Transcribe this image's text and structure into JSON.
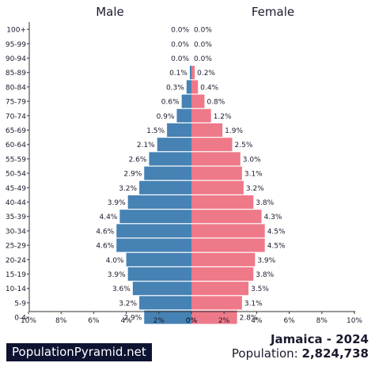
{
  "chart_data": {
    "type": "bar",
    "subtype": "population-pyramid",
    "left_label": "Male",
    "right_label": "Female",
    "categories": [
      "100+",
      "95-99",
      "90-94",
      "85-89",
      "80-84",
      "75-79",
      "70-74",
      "65-69",
      "60-64",
      "55-59",
      "50-54",
      "45-49",
      "40-44",
      "35-39",
      "30-34",
      "25-29",
      "20-24",
      "15-19",
      "10-14",
      "5-9",
      "0-4"
    ],
    "series": [
      {
        "name": "Male",
        "color": "#4682b4",
        "values": [
          0.0,
          0.0,
          0.0,
          0.1,
          0.3,
          0.6,
          0.9,
          1.5,
          2.1,
          2.6,
          2.9,
          3.2,
          3.9,
          4.4,
          4.6,
          4.6,
          4.0,
          3.9,
          3.6,
          3.2,
          2.9
        ]
      },
      {
        "name": "Female",
        "color": "#ee7989",
        "values": [
          0.0,
          0.0,
          0.0,
          0.2,
          0.4,
          0.8,
          1.2,
          1.9,
          2.5,
          3.0,
          3.1,
          3.2,
          3.8,
          4.3,
          4.5,
          4.5,
          3.9,
          3.8,
          3.5,
          3.1,
          2.8
        ]
      }
    ],
    "value_labels": {
      "male": [
        "0.0%",
        "0.0%",
        "0.0%",
        "0.1%",
        "0.3%",
        "0.6%",
        "0.9%",
        "1.5%",
        "2.1%",
        "2.6%",
        "2.9%",
        "3.2%",
        "3.9%",
        "4.4%",
        "4.6%",
        "4.6%",
        "4.0%",
        "3.9%",
        "3.6%",
        "3.2%",
        "2.9%"
      ],
      "female": [
        "0.0%",
        "0.0%",
        "0.0%",
        "0.2%",
        "0.4%",
        "0.8%",
        "1.2%",
        "1.9%",
        "2.5%",
        "3.0%",
        "3.1%",
        "3.2%",
        "3.8%",
        "4.3%",
        "4.5%",
        "4.5%",
        "3.9%",
        "3.8%",
        "3.5%",
        "3.1%",
        "2.8%"
      ]
    },
    "x_ticks_left": [
      "10%",
      "8%",
      "6%",
      "4%",
      "2%",
      "0%"
    ],
    "x_ticks_right": [
      "0%",
      "2%",
      "4%",
      "6%",
      "8%",
      "10%"
    ],
    "xlim": [
      0,
      10
    ],
    "grid": false
  },
  "footer": {
    "logo": "PopulationPyramid.net",
    "country_year": "Jamaica - 2024",
    "population_label": "Population:",
    "population_value": "2,824,738"
  }
}
